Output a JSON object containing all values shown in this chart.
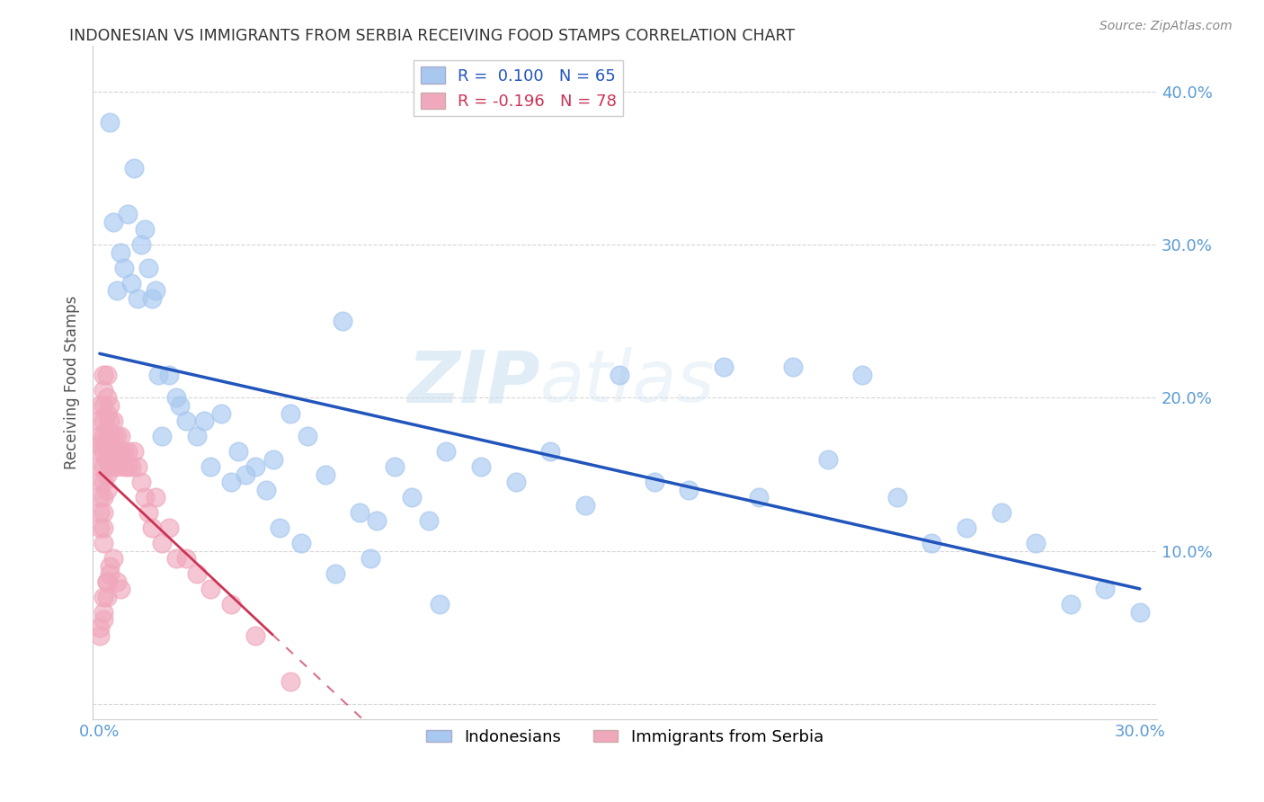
{
  "title": "INDONESIAN VS IMMIGRANTS FROM SERBIA RECEIVING FOOD STAMPS CORRELATION CHART",
  "source": "Source: ZipAtlas.com",
  "tick_color": "#5b9bd5",
  "ylabel": "Receiving Food Stamps",
  "xlim": [
    -0.002,
    0.305
  ],
  "ylim": [
    -0.01,
    0.43
  ],
  "xticks": [
    0.0,
    0.05,
    0.1,
    0.15,
    0.2,
    0.25,
    0.3
  ],
  "yticks": [
    0.0,
    0.1,
    0.2,
    0.3,
    0.4
  ],
  "blue_color": "#a8c8f0",
  "pink_color": "#f0a8bc",
  "blue_line_color": "#2255bb",
  "pink_line_color": "#cc3355",
  "watermark_zip": "ZIP",
  "watermark_atlas": "atlas",
  "indonesian_x": [
    0.005,
    0.01,
    0.012,
    0.008,
    0.007,
    0.006,
    0.009,
    0.011,
    0.013,
    0.015,
    0.004,
    0.014,
    0.016,
    0.018,
    0.02,
    0.022,
    0.025,
    0.028,
    0.03,
    0.032,
    0.035,
    0.038,
    0.04,
    0.045,
    0.05,
    0.055,
    0.06,
    0.065,
    0.07,
    0.075,
    0.08,
    0.085,
    0.09,
    0.095,
    0.1,
    0.11,
    0.12,
    0.13,
    0.14,
    0.15,
    0.16,
    0.17,
    0.18,
    0.19,
    0.2,
    0.21,
    0.22,
    0.23,
    0.24,
    0.25,
    0.26,
    0.27,
    0.28,
    0.29,
    0.3,
    0.003,
    0.017,
    0.023,
    0.042,
    0.048,
    0.052,
    0.058,
    0.068,
    0.078,
    0.098
  ],
  "indonesian_y": [
    0.27,
    0.35,
    0.3,
    0.32,
    0.285,
    0.295,
    0.275,
    0.265,
    0.31,
    0.265,
    0.315,
    0.285,
    0.27,
    0.175,
    0.215,
    0.2,
    0.185,
    0.175,
    0.185,
    0.155,
    0.19,
    0.145,
    0.165,
    0.155,
    0.16,
    0.19,
    0.175,
    0.15,
    0.25,
    0.125,
    0.12,
    0.155,
    0.135,
    0.12,
    0.165,
    0.155,
    0.145,
    0.165,
    0.13,
    0.215,
    0.145,
    0.14,
    0.22,
    0.135,
    0.22,
    0.16,
    0.215,
    0.135,
    0.105,
    0.115,
    0.125,
    0.105,
    0.065,
    0.075,
    0.06,
    0.38,
    0.215,
    0.195,
    0.15,
    0.14,
    0.115,
    0.105,
    0.085,
    0.095,
    0.065
  ],
  "serbia_x": [
    0.0,
    0.0,
    0.0,
    0.0,
    0.0,
    0.0,
    0.0,
    0.0,
    0.0,
    0.0,
    0.001,
    0.001,
    0.001,
    0.001,
    0.001,
    0.001,
    0.001,
    0.001,
    0.001,
    0.001,
    0.001,
    0.001,
    0.002,
    0.002,
    0.002,
    0.002,
    0.002,
    0.002,
    0.002,
    0.002,
    0.003,
    0.003,
    0.003,
    0.003,
    0.003,
    0.004,
    0.004,
    0.004,
    0.004,
    0.005,
    0.005,
    0.005,
    0.006,
    0.006,
    0.007,
    0.007,
    0.008,
    0.008,
    0.009,
    0.01,
    0.011,
    0.012,
    0.013,
    0.014,
    0.015,
    0.016,
    0.018,
    0.02,
    0.022,
    0.025,
    0.028,
    0.032,
    0.038,
    0.045,
    0.055,
    0.0,
    0.001,
    0.002,
    0.002,
    0.003,
    0.0,
    0.001,
    0.001,
    0.002,
    0.003,
    0.004,
    0.005,
    0.006
  ],
  "serbia_y": [
    0.195,
    0.185,
    0.175,
    0.17,
    0.165,
    0.155,
    0.145,
    0.135,
    0.125,
    0.115,
    0.215,
    0.205,
    0.195,
    0.185,
    0.175,
    0.165,
    0.155,
    0.145,
    0.135,
    0.125,
    0.115,
    0.105,
    0.215,
    0.2,
    0.19,
    0.18,
    0.17,
    0.16,
    0.15,
    0.14,
    0.195,
    0.185,
    0.175,
    0.165,
    0.155,
    0.185,
    0.175,
    0.165,
    0.155,
    0.175,
    0.165,
    0.155,
    0.175,
    0.165,
    0.165,
    0.155,
    0.165,
    0.155,
    0.155,
    0.165,
    0.155,
    0.145,
    0.135,
    0.125,
    0.115,
    0.135,
    0.105,
    0.115,
    0.095,
    0.095,
    0.085,
    0.075,
    0.065,
    0.045,
    0.015,
    0.05,
    0.06,
    0.07,
    0.08,
    0.085,
    0.045,
    0.055,
    0.07,
    0.08,
    0.09,
    0.095,
    0.08,
    0.075
  ]
}
